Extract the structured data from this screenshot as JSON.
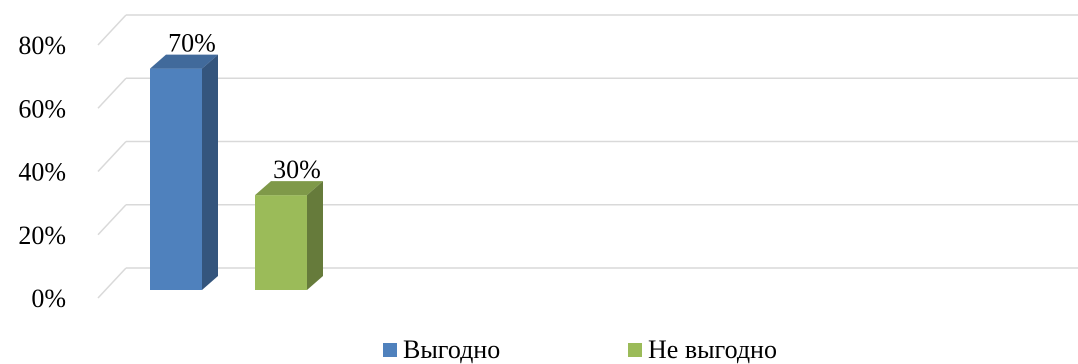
{
  "chart_data": {
    "type": "bar",
    "style": "3d-column",
    "categories": [
      ""
    ],
    "series": [
      {
        "name": "Выгодно",
        "values": [
          70
        ],
        "label": "70%",
        "color": "#4f81bd"
      },
      {
        "name": "Не выгодно",
        "values": [
          30
        ],
        "label": "30%",
        "color": "#9bbb59"
      }
    ],
    "ylim": [
      0,
      80
    ],
    "yticks": [
      "0%",
      "20%",
      "40%",
      "60%",
      "80%"
    ],
    "grid": true,
    "legend_position": "bottom"
  }
}
